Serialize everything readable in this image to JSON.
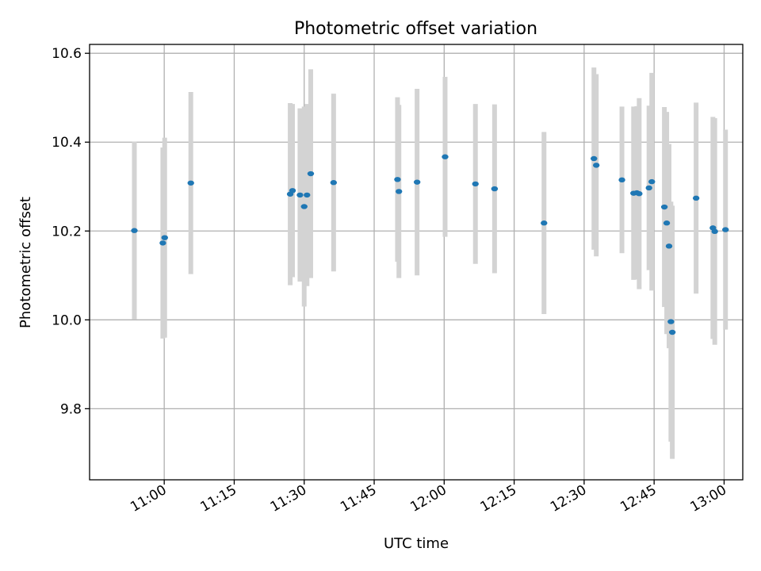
{
  "chart_data": {
    "type": "scatter",
    "title": "Photometric offset variation",
    "xlabel": "UTC time",
    "ylabel": "Photometric offset",
    "x_unit": "minutes since 00:00 UTC",
    "xlim": [
      644,
      784
    ],
    "ylim": [
      9.64,
      10.62
    ],
    "grid": true,
    "x_ticks": [
      {
        "value": 660,
        "label": "11:00"
      },
      {
        "value": 675,
        "label": "11:15"
      },
      {
        "value": 690,
        "label": "11:30"
      },
      {
        "value": 705,
        "label": "11:45"
      },
      {
        "value": 720,
        "label": "12:00"
      },
      {
        "value": 735,
        "label": "12:15"
      },
      {
        "value": 750,
        "label": "12:30"
      },
      {
        "value": 765,
        "label": "12:45"
      },
      {
        "value": 780,
        "label": "13:00"
      }
    ],
    "y_ticks": [
      {
        "value": 9.8,
        "label": "9.8"
      },
      {
        "value": 10.0,
        "label": "10.0"
      },
      {
        "value": 10.2,
        "label": "10.2"
      },
      {
        "value": 10.4,
        "label": "10.4"
      },
      {
        "value": 10.6,
        "label": "10.6"
      }
    ],
    "colors": {
      "points": "#1f77b4",
      "errorbars": "#d3d3d3",
      "grid": "#b0b0b0",
      "axes": "#000000"
    },
    "series": [
      {
        "points": [
          {
            "x": 653.6,
            "y": 10.201,
            "err": 0.2
          },
          {
            "x": 659.7,
            "y": 10.173,
            "err": 0.215
          },
          {
            "x": 660.1,
            "y": 10.185,
            "err": 0.225
          },
          {
            "x": 665.7,
            "y": 10.308,
            "err": 0.205
          },
          {
            "x": 687.0,
            "y": 10.283,
            "err": 0.205
          },
          {
            "x": 687.5,
            "y": 10.291,
            "err": 0.195
          },
          {
            "x": 689.1,
            "y": 10.281,
            "err": 0.195
          },
          {
            "x": 690.0,
            "y": 10.255,
            "err": 0.225
          },
          {
            "x": 690.6,
            "y": 10.281,
            "err": 0.205
          },
          {
            "x": 691.4,
            "y": 10.329,
            "err": 0.235
          },
          {
            "x": 696.3,
            "y": 10.309,
            "err": 0.2
          },
          {
            "x": 710.0,
            "y": 10.316,
            "err": 0.185
          },
          {
            "x": 710.3,
            "y": 10.289,
            "err": 0.195
          },
          {
            "x": 714.2,
            "y": 10.31,
            "err": 0.21
          },
          {
            "x": 720.2,
            "y": 10.367,
            "err": 0.18
          },
          {
            "x": 726.7,
            "y": 10.306,
            "err": 0.18
          },
          {
            "x": 730.8,
            "y": 10.295,
            "err": 0.19
          },
          {
            "x": 741.4,
            "y": 10.218,
            "err": 0.205
          },
          {
            "x": 752.1,
            "y": 10.363,
            "err": 0.205
          },
          {
            "x": 752.6,
            "y": 10.348,
            "err": 0.205
          },
          {
            "x": 758.1,
            "y": 10.315,
            "err": 0.165
          },
          {
            "x": 760.6,
            "y": 10.285,
            "err": 0.195
          },
          {
            "x": 761.3,
            "y": 10.286,
            "err": 0.195
          },
          {
            "x": 761.8,
            "y": 10.284,
            "err": 0.215
          },
          {
            "x": 763.9,
            "y": 10.297,
            "err": 0.185
          },
          {
            "x": 764.5,
            "y": 10.311,
            "err": 0.245
          },
          {
            "x": 767.2,
            "y": 10.254,
            "err": 0.225
          },
          {
            "x": 767.7,
            "y": 10.218,
            "err": 0.25
          },
          {
            "x": 768.2,
            "y": 10.166,
            "err": 0.23
          },
          {
            "x": 768.6,
            "y": 9.996,
            "err": 0.27
          },
          {
            "x": 768.9,
            "y": 9.972,
            "err": 0.285
          },
          {
            "x": 774.0,
            "y": 10.274,
            "err": 0.215
          },
          {
            "x": 777.6,
            "y": 10.207,
            "err": 0.25
          },
          {
            "x": 778.0,
            "y": 10.199,
            "err": 0.255
          },
          {
            "x": 780.3,
            "y": 10.203,
            "err": 0.225
          }
        ]
      }
    ]
  }
}
